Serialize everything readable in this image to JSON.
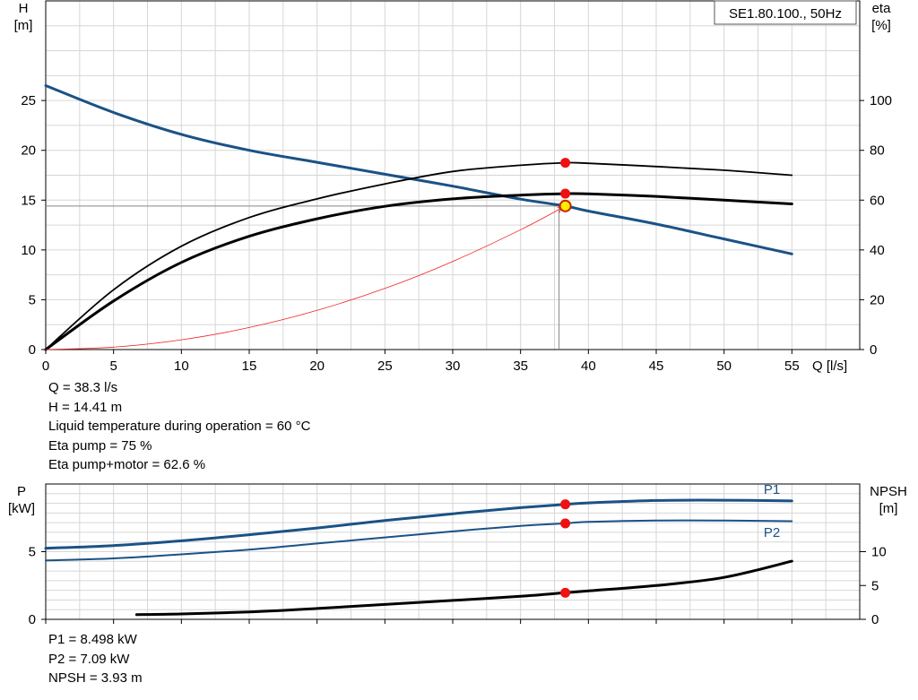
{
  "chart_data": [
    {
      "type": "line",
      "title": "SE1.80.100., 50Hz",
      "xlabel": "Q [l/s]",
      "ylabel": "H\n[m]",
      "y2label": "eta\n[%]",
      "xlim": [
        0,
        60
      ],
      "ylim": [
        0,
        35
      ],
      "y2lim": [
        0,
        140
      ],
      "xticks": [
        0,
        5,
        10,
        15,
        20,
        25,
        30,
        35,
        40,
        45,
        50,
        55
      ],
      "yticks": [
        0,
        5,
        10,
        15,
        20,
        25
      ],
      "y2ticks": [
        0,
        20,
        40,
        60,
        80,
        100
      ],
      "grid": true,
      "series": [
        {
          "axis": "y",
          "color": "#1a5286",
          "x": [
            0,
            5,
            10,
            15,
            20,
            25,
            30,
            35,
            38.3,
            40,
            45,
            50,
            55
          ],
          "values": [
            26.5,
            23.8,
            21.6,
            20.0,
            18.8,
            17.6,
            16.4,
            15.1,
            14.41,
            13.9,
            12.6,
            11.1,
            9.6
          ]
        },
        {
          "axis": "y2",
          "color": "#000000",
          "x": [
            0,
            5,
            10,
            15,
            20,
            25,
            30,
            35,
            38.3,
            40,
            45,
            50,
            55
          ],
          "values": [
            0,
            24,
            41.5,
            53,
            60.5,
            66.5,
            71.5,
            74,
            75,
            74.8,
            73.5,
            72,
            70
          ]
        },
        {
          "axis": "y2",
          "color": "#000000",
          "bold": true,
          "x": [
            0,
            5,
            10,
            15,
            20,
            25,
            30,
            35,
            38.3,
            40,
            45,
            50,
            55
          ],
          "values": [
            0,
            19.5,
            35,
            45.5,
            52.5,
            57.5,
            60.5,
            62,
            62.6,
            62.5,
            61.5,
            60,
            58.5
          ]
        },
        {
          "axis": "y",
          "color": "#ee2222",
          "thin": true,
          "x": [
            0,
            5,
            10,
            15,
            20,
            25,
            30,
            35,
            38.3
          ],
          "values": [
            0,
            0.24,
            0.98,
            2.21,
            3.93,
            6.14,
            8.84,
            12.03,
            14.41
          ]
        }
      ],
      "points": [
        {
          "x": 38.3,
          "y": 18.75,
          "color": "#ee1111"
        },
        {
          "x": 38.3,
          "y": 15.65,
          "color": "#ee1111"
        },
        {
          "x": 38.3,
          "y": 14.41,
          "color": "#ffee00",
          "stroke": "#cc2200"
        }
      ],
      "duty_point": {
        "x": 38.3,
        "y": 14.41
      }
    },
    {
      "type": "line",
      "ylabel": "P\n[kW]",
      "y2label": "NPSH\n[m]",
      "xlim": [
        0,
        60
      ],
      "ylim": [
        0,
        10
      ],
      "y2lim": [
        0,
        20
      ],
      "xticks": [
        0,
        5,
        10,
        15,
        20,
        25,
        30,
        35,
        40,
        45,
        50,
        55
      ],
      "yticks": [
        0,
        5
      ],
      "y2ticks": [
        0,
        5,
        10
      ],
      "grid": true,
      "series": [
        {
          "name": "P1",
          "axis": "y",
          "color": "#1a5286",
          "bold": true,
          "x": [
            0,
            5,
            10,
            15,
            20,
            25,
            30,
            35,
            38.3,
            40,
            45,
            50,
            55
          ],
          "values": [
            5.25,
            5.45,
            5.8,
            6.25,
            6.75,
            7.3,
            7.8,
            8.25,
            8.498,
            8.6,
            8.78,
            8.8,
            8.75
          ]
        },
        {
          "name": "P2",
          "axis": "y",
          "color": "#1a5286",
          "x": [
            0,
            5,
            10,
            15,
            20,
            25,
            30,
            35,
            38.3,
            40,
            45,
            50,
            55
          ],
          "values": [
            4.35,
            4.5,
            4.8,
            5.15,
            5.6,
            6.05,
            6.5,
            6.9,
            7.09,
            7.2,
            7.3,
            7.3,
            7.25
          ]
        },
        {
          "axis": "y2",
          "color": "#000000",
          "bold": true,
          "x": [
            6.7,
            10,
            15,
            20,
            25,
            30,
            35,
            38.3,
            40,
            45,
            50,
            55
          ],
          "values": [
            0.7,
            0.8,
            1.1,
            1.6,
            2.2,
            2.8,
            3.4,
            3.93,
            4.2,
            5.0,
            6.2,
            8.6
          ]
        }
      ],
      "points": [
        {
          "x": 38.3,
          "y": 8.498,
          "color": "#ee1111"
        },
        {
          "x": 38.3,
          "y": 7.09,
          "color": "#ee1111"
        },
        {
          "x": 38.3,
          "y": 1.965,
          "color": "#ee1111"
        }
      ]
    }
  ],
  "readout_top": [
    "Q = 38.3 l/s",
    "H = 14.41 m",
    "Liquid temperature during operation = 60 °C",
    "Eta pump = 75 %",
    "Eta pump+motor = 62.6 %"
  ],
  "readout_bottom": [
    "P1 = 8.498 kW",
    "P2 = 7.09 kW",
    "NPSH = 3.93 m"
  ]
}
